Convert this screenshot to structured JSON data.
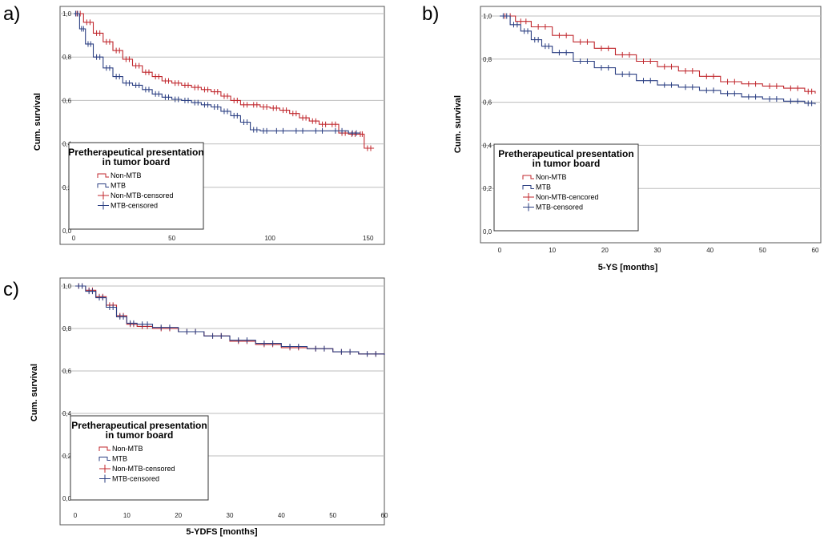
{
  "panels": [
    {
      "label": "a)"
    },
    {
      "label": "b)"
    },
    {
      "label": "c)"
    }
  ],
  "colors": {
    "non_mtb": "#c0272d",
    "mtb": "#2b3f82",
    "grid": "#bdbdbd",
    "frame": "#555555"
  },
  "chart_data": [
    {
      "type": "line",
      "title": "",
      "xlabel": "",
      "ylabel": "Cum. survival",
      "xlim": [
        0,
        155
      ],
      "ylim": [
        0,
        1
      ],
      "xticks": [
        "0",
        "50",
        "100",
        "150"
      ],
      "yticks": [
        "0,0",
        "0,2",
        "0,4",
        "0,6",
        "0,8",
        "1,0"
      ],
      "legend": {
        "title_line1": "Pretherapeutical presentation",
        "title_line2": "in tumor board",
        "entries": [
          "Non-MTB",
          "MTB",
          "Non-MTB-censored",
          "MTB-censored"
        ]
      },
      "series": [
        {
          "name": "Non-MTB",
          "x": [
            0,
            5,
            10,
            15,
            20,
            25,
            30,
            35,
            40,
            45,
            50,
            55,
            60,
            65,
            70,
            75,
            80,
            85,
            90,
            95,
            100,
            105,
            110,
            115,
            120,
            125,
            130,
            135,
            140,
            145,
            148,
            153
          ],
          "y": [
            1.0,
            0.96,
            0.91,
            0.87,
            0.83,
            0.79,
            0.76,
            0.73,
            0.71,
            0.69,
            0.68,
            0.67,
            0.66,
            0.65,
            0.64,
            0.62,
            0.6,
            0.58,
            0.58,
            0.57,
            0.565,
            0.555,
            0.54,
            0.52,
            0.505,
            0.49,
            0.49,
            0.45,
            0.445,
            0.445,
            0.38,
            0.38
          ]
        },
        {
          "name": "MTB",
          "x": [
            0,
            3,
            6,
            10,
            15,
            20,
            25,
            30,
            35,
            40,
            45,
            50,
            55,
            60,
            65,
            70,
            75,
            80,
            85,
            90,
            95,
            100,
            110,
            120,
            130,
            140,
            146
          ],
          "y": [
            1.0,
            0.93,
            0.86,
            0.8,
            0.75,
            0.71,
            0.68,
            0.67,
            0.65,
            0.63,
            0.615,
            0.605,
            0.6,
            0.59,
            0.58,
            0.57,
            0.55,
            0.53,
            0.5,
            0.465,
            0.46,
            0.46,
            0.46,
            0.46,
            0.46,
            0.45,
            0.45
          ]
        }
      ]
    },
    {
      "type": "line",
      "title": "",
      "xlabel": "5-YS [months]",
      "ylabel": "Cum. survival",
      "xlim": [
        0,
        60
      ],
      "ylim": [
        0,
        1
      ],
      "xticks": [
        "0",
        "10",
        "20",
        "30",
        "40",
        "50",
        "60"
      ],
      "yticks": [
        "0,0",
        "0,2",
        "0,4",
        "0,6",
        "0,8",
        "1,0"
      ],
      "legend": {
        "title_line1": "Pretherapeutical presentation",
        "title_line2": "in tumor board",
        "entries": [
          "Non-MTB",
          "MTB",
          "Non-MTB-cencored",
          "MTB-censored"
        ]
      },
      "series": [
        {
          "name": "Non-MTB",
          "x": [
            0,
            3,
            6,
            10,
            14,
            18,
            22,
            26,
            30,
            34,
            38,
            42,
            46,
            50,
            54,
            58,
            60
          ],
          "y": [
            1.0,
            0.975,
            0.95,
            0.91,
            0.88,
            0.85,
            0.82,
            0.79,
            0.765,
            0.745,
            0.72,
            0.695,
            0.685,
            0.675,
            0.665,
            0.65,
            0.64
          ]
        },
        {
          "name": "MTB",
          "x": [
            0,
            2,
            4,
            6,
            8,
            10,
            14,
            18,
            22,
            26,
            30,
            34,
            38,
            42,
            46,
            50,
            54,
            58,
            60
          ],
          "y": [
            1.0,
            0.96,
            0.93,
            0.89,
            0.86,
            0.83,
            0.79,
            0.76,
            0.73,
            0.7,
            0.68,
            0.67,
            0.655,
            0.64,
            0.625,
            0.615,
            0.605,
            0.595,
            0.59
          ]
        }
      ]
    },
    {
      "type": "line",
      "title": "",
      "xlabel": "5-YDFS [months]",
      "ylabel": "Cum. survival",
      "xlim": [
        0,
        60
      ],
      "ylim": [
        0,
        1
      ],
      "xticks": [
        "0",
        "10",
        "20",
        "30",
        "40",
        "50",
        "60"
      ],
      "yticks": [
        "0,0",
        "0,2",
        "0,4",
        "0,6",
        "0,8",
        "1,0"
      ],
      "legend": {
        "title_line1": "Pretherapeutical presentation",
        "title_line2": "in tumor board",
        "entries": [
          "Non-MTB",
          "MTB",
          "Non-MTB-censored",
          "MTB-censored"
        ]
      },
      "series": [
        {
          "name": "Non-MTB",
          "x": [
            0,
            2,
            4,
            6,
            8,
            10,
            12,
            15,
            20,
            25,
            30,
            35,
            40,
            45,
            50,
            55,
            60
          ],
          "y": [
            1.0,
            0.98,
            0.95,
            0.91,
            0.86,
            0.82,
            0.81,
            0.8,
            0.785,
            0.765,
            0.74,
            0.725,
            0.71,
            0.705,
            0.69,
            0.68,
            0.675
          ]
        },
        {
          "name": "MTB",
          "x": [
            0,
            2,
            4,
            6,
            8,
            10,
            12,
            15,
            20,
            25,
            30,
            35,
            40,
            45,
            50,
            55,
            60
          ],
          "y": [
            1.0,
            0.975,
            0.945,
            0.9,
            0.855,
            0.825,
            0.82,
            0.805,
            0.785,
            0.765,
            0.745,
            0.73,
            0.715,
            0.705,
            0.69,
            0.68,
            0.675
          ]
        }
      ]
    }
  ]
}
